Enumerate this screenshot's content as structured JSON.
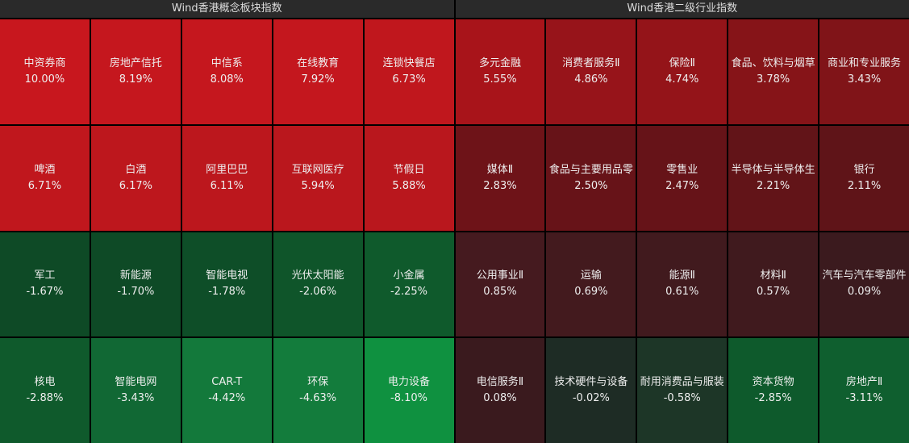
{
  "panels": [
    {
      "title": "Wind香港概念板块指数",
      "tiles": [
        {
          "name": "中资券商",
          "change": "10.00%",
          "color": "#c8171e"
        },
        {
          "name": "房地产信托",
          "change": "8.19%",
          "color": "#c5171e"
        },
        {
          "name": "中信系",
          "change": "8.08%",
          "color": "#c5171e"
        },
        {
          "name": "在线教育",
          "change": "7.92%",
          "color": "#c4171e"
        },
        {
          "name": "连锁快餐店",
          "change": "6.73%",
          "color": "#c0171d"
        },
        {
          "name": "啤酒",
          "change": "6.71%",
          "color": "#c0171d"
        },
        {
          "name": "白酒",
          "change": "6.17%",
          "color": "#bd171d"
        },
        {
          "name": "阿里巴巴",
          "change": "6.11%",
          "color": "#bc171d"
        },
        {
          "name": "互联网医疗",
          "change": "5.94%",
          "color": "#ba171d"
        },
        {
          "name": "节假日",
          "change": "5.88%",
          "color": "#b9171d"
        },
        {
          "name": "军工",
          "change": "-1.67%",
          "color": "#0e4a26"
        },
        {
          "name": "新能源",
          "change": "-1.70%",
          "color": "#0e4a26"
        },
        {
          "name": "智能电视",
          "change": "-1.78%",
          "color": "#0e4e28"
        },
        {
          "name": "光伏太阳能",
          "change": "-2.06%",
          "color": "#0f552a"
        },
        {
          "name": "小金属",
          "change": "-2.25%",
          "color": "#0f5a2c"
        },
        {
          "name": "核电",
          "change": "-2.88%",
          "color": "#0f5a2c"
        },
        {
          "name": "智能电网",
          "change": "-3.43%",
          "color": "#116834"
        },
        {
          "name": "CAR-T",
          "change": "-4.42%",
          "color": "#13793b"
        },
        {
          "name": "环保",
          "change": "-4.63%",
          "color": "#137c3c"
        },
        {
          "name": "电力设备",
          "change": "-8.10%",
          "color": "#0f9140"
        }
      ]
    },
    {
      "title": "Wind香港二级行业指数",
      "tiles": [
        {
          "name": "多元金融",
          "change": "5.55%",
          "color": "#a8141a"
        },
        {
          "name": "消费者服务Ⅱ",
          "change": "4.86%",
          "color": "#97141a"
        },
        {
          "name": "保险Ⅱ",
          "change": "4.74%",
          "color": "#941419"
        },
        {
          "name": "食品、饮料与烟草",
          "change": "3.78%",
          "color": "#861418"
        },
        {
          "name": "商业和专业服务",
          "change": "3.43%",
          "color": "#801418"
        },
        {
          "name": "媒体Ⅱ",
          "change": "2.83%",
          "color": "#6e1318"
        },
        {
          "name": "食品与主要用品零",
          "change": "2.50%",
          "color": "#671318"
        },
        {
          "name": "零售业",
          "change": "2.47%",
          "color": "#661318"
        },
        {
          "name": "半导体与半导体生",
          "change": "2.21%",
          "color": "#621418"
        },
        {
          "name": "银行",
          "change": "2.11%",
          "color": "#5f1418"
        },
        {
          "name": "公用事业Ⅱ",
          "change": "0.85%",
          "color": "#451a1f"
        },
        {
          "name": "运输",
          "change": "0.69%",
          "color": "#431a1e"
        },
        {
          "name": "能源Ⅱ",
          "change": "0.61%",
          "color": "#411a1e"
        },
        {
          "name": "材料Ⅱ",
          "change": "0.57%",
          "color": "#401a1e"
        },
        {
          "name": "汽车与汽车零部件",
          "change": "0.09%",
          "color": "#3b1a1e"
        },
        {
          "name": "电信服务Ⅱ",
          "change": "0.08%",
          "color": "#3a1a1e"
        },
        {
          "name": "技术硬件与设备",
          "change": "-0.02%",
          "color": "#1e2c25"
        },
        {
          "name": "耐用消费品与服装",
          "change": "-0.58%",
          "color": "#1d3627"
        },
        {
          "name": "资本货物",
          "change": "-2.85%",
          "color": "#0e5a2c"
        },
        {
          "name": "房地产Ⅱ",
          "change": "-3.11%",
          "color": "#0f5f2f"
        }
      ]
    }
  ]
}
